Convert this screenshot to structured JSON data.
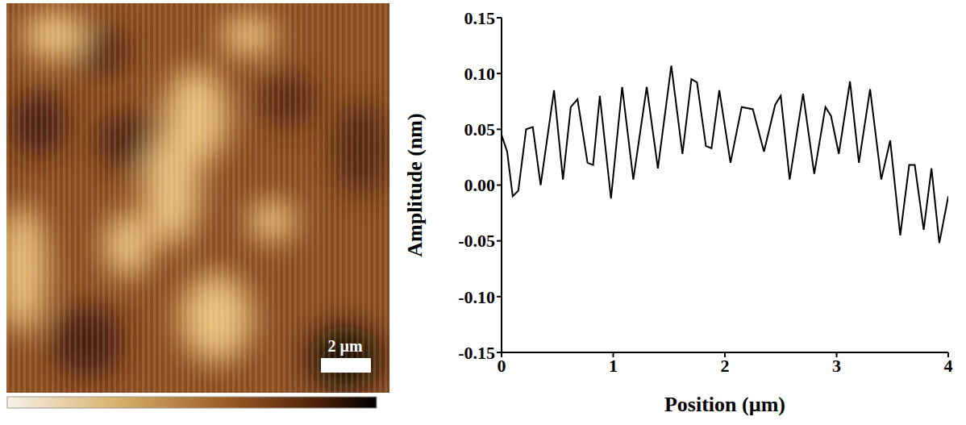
{
  "chart_data": {
    "type": "line",
    "x_label": "Position (µm)",
    "y_label": "Amplitude (nm)",
    "x": [
      0,
      0.05,
      0.1,
      0.15,
      0.22,
      0.28,
      0.35,
      0.47,
      0.55,
      0.62,
      0.68,
      0.77,
      0.82,
      0.88,
      0.98,
      1.08,
      1.18,
      1.3,
      1.4,
      1.52,
      1.62,
      1.7,
      1.75,
      1.83,
      1.88,
      1.95,
      2.05,
      2.15,
      2.25,
      2.35,
      2.45,
      2.5,
      2.58,
      2.7,
      2.8,
      2.9,
      2.95,
      3.02,
      3.12,
      3.2,
      3.3,
      3.4,
      3.48,
      3.57,
      3.65,
      3.7,
      3.78,
      3.85,
      3.92,
      4.0
    ],
    "values": [
      0.045,
      0.03,
      -0.01,
      -0.005,
      0.05,
      0.052,
      0.0,
      0.085,
      0.005,
      0.07,
      0.077,
      0.02,
      0.018,
      0.08,
      -0.012,
      0.088,
      0.005,
      0.088,
      0.015,
      0.107,
      0.028,
      0.095,
      0.092,
      0.035,
      0.033,
      0.085,
      0.02,
      0.07,
      0.068,
      0.03,
      0.072,
      0.08,
      0.005,
      0.082,
      0.01,
      0.07,
      0.062,
      0.028,
      0.093,
      0.02,
      0.086,
      0.005,
      0.04,
      -0.045,
      0.018,
      0.018,
      -0.04,
      0.015,
      -0.052,
      -0.01
    ],
    "color": "#000000",
    "xlim": [
      0,
      4
    ],
    "xticks": [
      0,
      1,
      2,
      3,
      4
    ],
    "ylim": [
      -0.15,
      0.15
    ],
    "yticks": [
      -0.15,
      {
        "value": -0.1,
        "label": "-0.10"
      },
      -0.05,
      {
        "value": 0,
        "label": "0.00"
      },
      0.05,
      {
        "value": 0.1,
        "label": "0.10"
      },
      0.15
    ],
    "grid": false,
    "marker": "none",
    "line_style": "solid"
  },
  "image": {
    "scale_bar": "2 µm"
  }
}
